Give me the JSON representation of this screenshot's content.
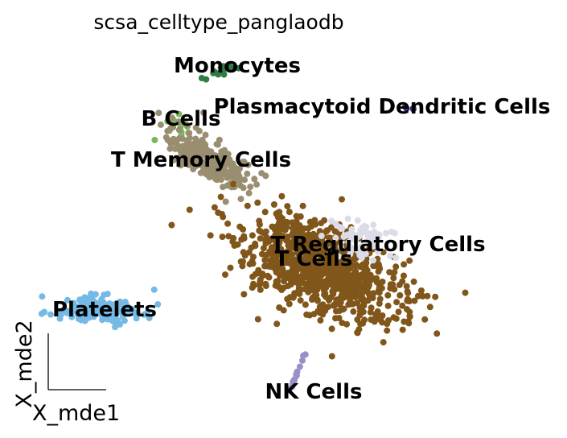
{
  "chart_data": {
    "type": "scatter",
    "title": "scsa_celltype_panglaodb",
    "xlabel": "X_mde1",
    "ylabel": "X_mde2",
    "legend": "on data",
    "grid": false,
    "clusters": [
      {
        "label": "Monocytes",
        "color": "#2e7d45",
        "center": [
          2.75,
          5.15
        ]
      },
      {
        "label": "Plasmacytoid Dendritic Cells",
        "color": "#3a2a82",
        "center": [
          4.55,
          4.3
        ]
      },
      {
        "label": "B Cells",
        "color": "#7ab85a",
        "center": [
          2.05,
          4.05
        ]
      },
      {
        "label": "T Memory Cells",
        "color": "#9a8e70",
        "center": [
          2.3,
          3.2
        ]
      },
      {
        "label": "T Cells",
        "color": "#80561a",
        "center": [
          3.7,
          1.15
        ]
      },
      {
        "label": "T Regulatory Cells",
        "color": "#dcdbe8",
        "center": [
          4.5,
          1.45
        ]
      },
      {
        "label": "Platelets",
        "color": "#75b9e6",
        "center": [
          1.1,
          0.1
        ]
      },
      {
        "label": "NK Cells",
        "color": "#9b90c6",
        "center": [
          3.7,
          -1.6
        ]
      }
    ]
  }
}
